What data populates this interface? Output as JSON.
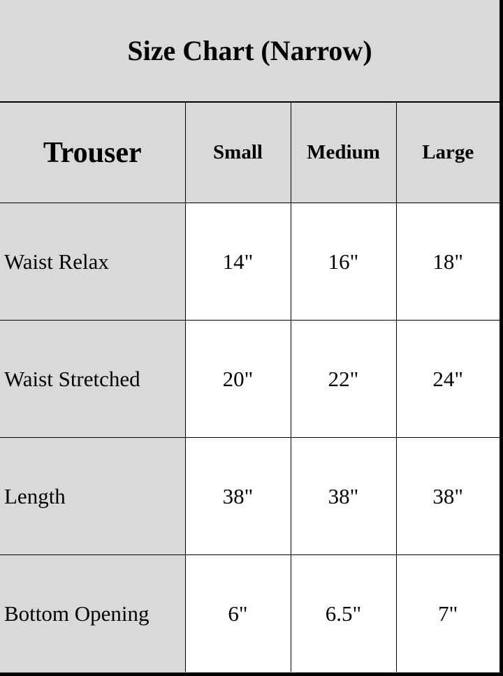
{
  "title": "Size Chart (Narrow)",
  "header": {
    "first": "Trouser",
    "sizes": [
      "Small",
      "Medium",
      "Large"
    ]
  },
  "rows": [
    {
      "label": "Waist Relax",
      "values": [
        "14\"",
        "16\"",
        "18\""
      ]
    },
    {
      "label": "Waist Stretched",
      "values": [
        "20\"",
        "22\"",
        "24\""
      ]
    },
    {
      "label": "Length",
      "values": [
        "38\"",
        "38\"",
        "38\""
      ]
    },
    {
      "label": "Bottom Opening",
      "values": [
        "6\"",
        "6.5\"",
        "7\""
      ]
    }
  ],
  "colors": {
    "header_bg": "#d9d9d9",
    "cell_bg": "#ffffff",
    "border": "#000000"
  }
}
